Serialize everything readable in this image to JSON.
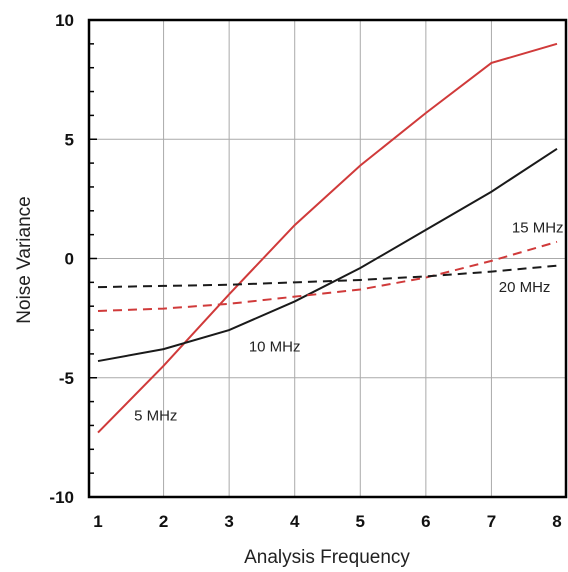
{
  "chart_data": {
    "type": "line",
    "title": "",
    "xlabel": "Analysis Frequency",
    "ylabel": "Noise  Variance",
    "xlim": [
      1,
      8
    ],
    "ylim": [
      -10,
      10
    ],
    "x_ticks": [
      "1",
      "2",
      "3",
      "4",
      "5",
      "6",
      "7",
      "8"
    ],
    "y_ticks": [
      "-10",
      "-5",
      "0",
      "5",
      "10"
    ],
    "grid": true,
    "x": [
      1,
      2,
      3,
      4,
      5,
      6,
      7,
      8
    ],
    "series": [
      {
        "name": "5 MHz",
        "color": "#d03a3a",
        "dash": "solid",
        "values": [
          -7.3,
          -4.5,
          -1.5,
          1.4,
          3.9,
          6.1,
          8.2,
          9.0
        ]
      },
      {
        "name": "10 MHz",
        "color": "#1a1a1a",
        "dash": "solid",
        "values": [
          -4.3,
          -3.8,
          -3.0,
          -1.8,
          -0.4,
          1.2,
          2.8,
          4.6
        ]
      },
      {
        "name": "15 MHz",
        "color": "#d03a3a",
        "dash": "dashed",
        "values": [
          -2.2,
          -2.1,
          -1.9,
          -1.6,
          -1.3,
          -0.8,
          -0.1,
          0.7
        ]
      },
      {
        "name": "20 MHz",
        "color": "#1a1a1a",
        "dash": "dashed",
        "values": [
          -1.2,
          -1.15,
          -1.1,
          -1.0,
          -0.9,
          -0.75,
          -0.55,
          -0.3
        ]
      }
    ]
  }
}
